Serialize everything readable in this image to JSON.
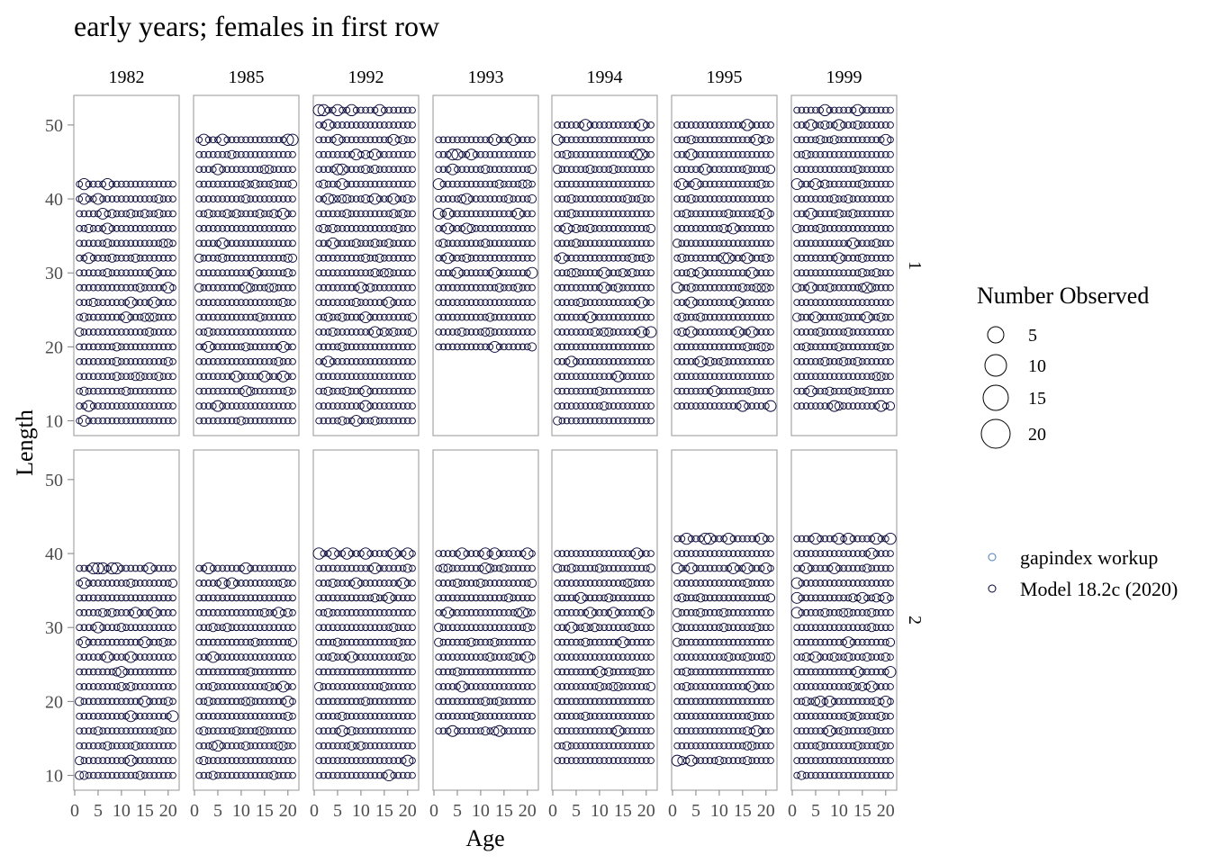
{
  "chart_data": {
    "type": "scatter",
    "title": "early years; females in first row",
    "xlabel": "Age",
    "ylabel": "Length",
    "xlim": [
      0,
      21
    ],
    "ylim": [
      8,
      54
    ],
    "xticks": [
      0,
      5,
      10,
      15,
      20
    ],
    "yticks": [
      10,
      20,
      30,
      40,
      50
    ],
    "columns": [
      "1982",
      "1985",
      "1992",
      "1993",
      "1994",
      "1995",
      "1999"
    ],
    "rows": [
      "1",
      "2"
    ],
    "ages": [
      1,
      21
    ],
    "age_step": 1,
    "length_step": 2,
    "length_ranges": {
      "1": {
        "1982": [
          10,
          42
        ],
        "1985": [
          10,
          48
        ],
        "1992": [
          10,
          52
        ],
        "1993": [
          20,
          48
        ],
        "1994": [
          10,
          50
        ],
        "1995": [
          12,
          50
        ],
        "1999": [
          12,
          52
        ]
      },
      "2": {
        "1982": [
          10,
          38
        ],
        "1985": [
          10,
          38
        ],
        "1992": [
          10,
          40
        ],
        "1993": [
          16,
          40
        ],
        "1994": [
          12,
          40
        ],
        "1995": [
          12,
          42
        ],
        "1999": [
          10,
          42
        ]
      }
    },
    "size_legend": {
      "title": "Number Observed",
      "values": [
        5,
        10,
        15,
        20
      ]
    },
    "series": [
      {
        "name": "gapindex workup",
        "color": "#4a7eb8"
      },
      {
        "name": "Model 18.2c (2020)",
        "color": "#000033"
      }
    ],
    "grid": false,
    "legend_position": "right"
  }
}
